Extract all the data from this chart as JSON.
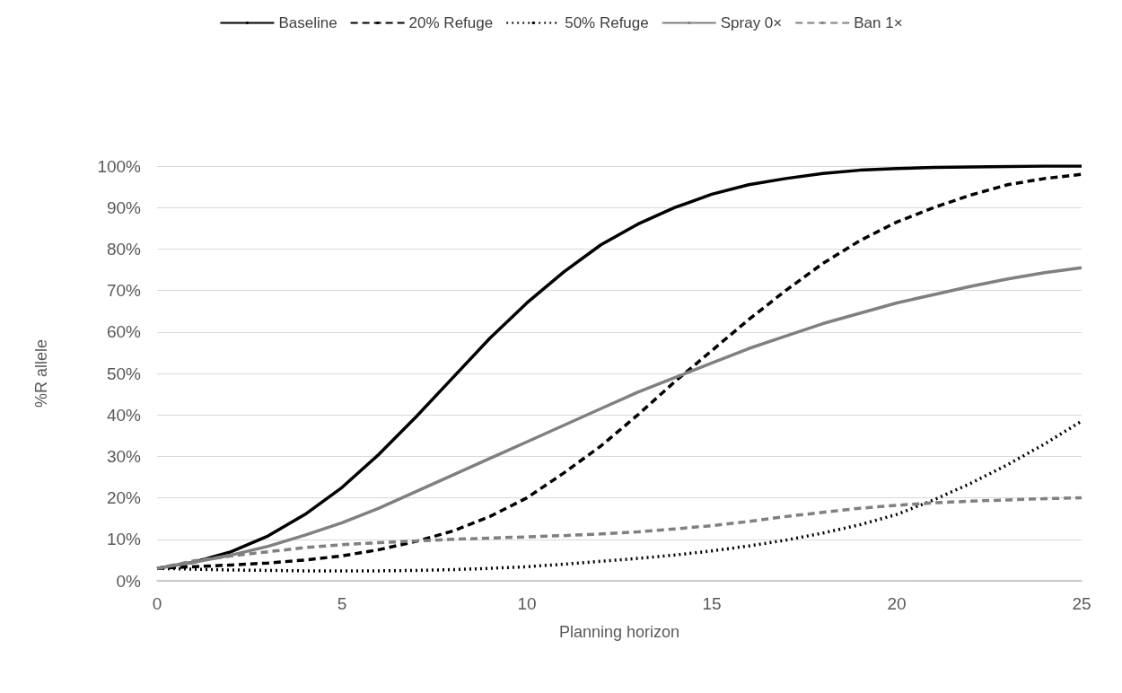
{
  "chart_data": {
    "type": "line",
    "xlabel": "Planning horizon",
    "ylabel": "%R allele",
    "x": [
      0,
      1,
      2,
      3,
      4,
      5,
      6,
      7,
      8,
      9,
      10,
      11,
      12,
      13,
      14,
      15,
      16,
      17,
      18,
      19,
      20,
      21,
      22,
      23,
      24,
      25
    ],
    "series": [
      {
        "name": "Baseline",
        "color": "#000000",
        "line_style": "solid",
        "values": [
          3,
          4.5,
          7,
          10.8,
          16,
          22.5,
          30.5,
          39.5,
          49,
          58.5,
          67,
          74.5,
          81,
          86,
          90,
          93.2,
          95.5,
          97,
          98.2,
          99,
          99.4,
          99.7,
          99.8,
          99.9,
          100,
          100
        ]
      },
      {
        "name": "20% Refuge",
        "color": "#000000",
        "line_style": "dashed",
        "values": [
          3,
          3.4,
          3.8,
          4.3,
          5,
          6,
          7.5,
          9.5,
          12,
          15.5,
          20,
          26,
          32.5,
          40,
          48,
          55.5,
          63,
          70,
          76.5,
          82,
          86.5,
          90,
          93,
          95.5,
          97,
          98
        ]
      },
      {
        "name": "50% Refuge",
        "color": "#000000",
        "line_style": "dotted",
        "values": [
          3,
          2.8,
          2.6,
          2.5,
          2.4,
          2.4,
          2.4,
          2.5,
          2.7,
          3,
          3.4,
          4,
          4.7,
          5.4,
          6.2,
          7.2,
          8.4,
          9.8,
          11.5,
          13.5,
          16,
          19.5,
          23.5,
          28,
          33,
          38.5
        ]
      },
      {
        "name": "Spray 0×",
        "color": "#808080",
        "line_style": "solid",
        "values": [
          3,
          4.5,
          6.2,
          8.3,
          11,
          14,
          17.5,
          21.5,
          25.5,
          29.5,
          33.5,
          37.5,
          41.5,
          45.5,
          49,
          52.5,
          56,
          59,
          62,
          64.5,
          67,
          69,
          71,
          72.8,
          74.3,
          75.5
        ]
      },
      {
        "name": "Ban 1×",
        "color": "#808080",
        "line_style": "dashed",
        "values": [
          3,
          4.8,
          6,
          7,
          8,
          8.7,
          9.2,
          9.6,
          10,
          10.3,
          10.6,
          10.9,
          11.3,
          11.8,
          12.5,
          13.3,
          14.3,
          15.5,
          16.5,
          17.5,
          18.2,
          18.8,
          19.2,
          19.5,
          19.8,
          20
        ]
      }
    ],
    "xlim": [
      0,
      25
    ],
    "xticks": [
      0,
      5,
      10,
      15,
      20,
      25
    ],
    "ylim": [
      0,
      100
    ],
    "yticks": [
      {
        "value": 0,
        "label": "0%"
      },
      {
        "value": 10,
        "label": "10%"
      },
      {
        "value": 20,
        "label": "20%"
      },
      {
        "value": 30,
        "label": "30%"
      },
      {
        "value": 40,
        "label": "40%"
      },
      {
        "value": 50,
        "label": "50%"
      },
      {
        "value": 60,
        "label": "60%"
      },
      {
        "value": 70,
        "label": "70%"
      },
      {
        "value": 80,
        "label": "80%"
      },
      {
        "value": 90,
        "label": "90%"
      },
      {
        "value": 100,
        "label": "100%"
      }
    ],
    "grid": "y",
    "legend": "top",
    "marker": "none"
  }
}
